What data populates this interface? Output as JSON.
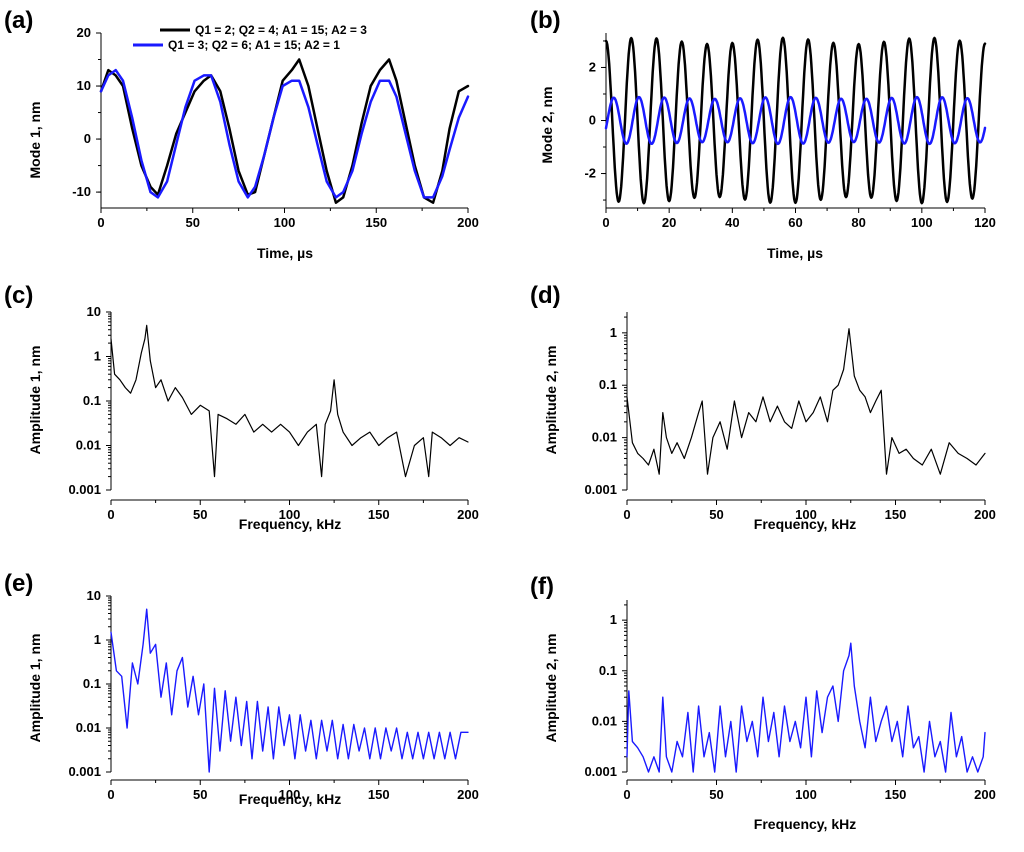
{
  "colors": {
    "black_series": "#000000",
    "blue_series": "#1a1aff"
  },
  "chart_data": [
    {
      "id": "a",
      "panel_label": "(a)",
      "type": "line",
      "xlabel": "Time, µs",
      "ylabel": "Mode 1, nm",
      "xlim": [
        0,
        200
      ],
      "ylim": [
        -13,
        20
      ],
      "yscale": "linear",
      "xticks": [
        "0",
        "50",
        "100",
        "150",
        "200"
      ],
      "yticks": [
        "-10",
        "0",
        "10",
        "20"
      ],
      "legend": {
        "placement": "top",
        "entries": [
          {
            "name": "black",
            "text": "Q1 = 2; Q2 = 4; A1 = 15; A2 = 3",
            "color": "#000000"
          },
          {
            "name": "blue",
            "text": "Q1 = 3; Q2 = 6; A1 = 15; A2 = 1",
            "color": "#1a1aff"
          }
        ]
      },
      "series": [
        {
          "name": "black",
          "color": "#000000",
          "width": 2.5,
          "x": [
            0,
            4,
            8,
            12,
            17,
            22,
            27,
            31,
            36,
            41,
            46,
            51,
            56,
            60,
            65,
            70,
            75,
            80,
            84,
            89,
            94,
            99,
            104,
            108,
            113,
            118,
            123,
            128,
            132,
            137,
            142,
            147,
            152,
            157,
            161,
            166,
            171,
            176,
            181,
            186,
            190,
            195,
            200
          ],
          "y": [
            9,
            13,
            12,
            10,
            2,
            -5,
            -9,
            -10.5,
            -5,
            1,
            5,
            9,
            11,
            12,
            9,
            2,
            -6,
            -10.5,
            -10,
            -3,
            4,
            11,
            13,
            15,
            10,
            2,
            -6,
            -12,
            -11,
            -5,
            3,
            10,
            13,
            15,
            11,
            3,
            -5,
            -11,
            -12,
            -6,
            2,
            9,
            10
          ]
        },
        {
          "name": "blue",
          "color": "#1a1aff",
          "width": 2.5,
          "x": [
            0,
            4,
            8,
            12,
            17,
            22,
            27,
            31,
            36,
            41,
            46,
            51,
            56,
            60,
            65,
            70,
            75,
            80,
            84,
            89,
            94,
            99,
            104,
            108,
            113,
            118,
            123,
            128,
            132,
            137,
            142,
            147,
            152,
            157,
            161,
            166,
            171,
            176,
            181,
            186,
            190,
            195,
            200
          ],
          "y": [
            9,
            12,
            13,
            11,
            4,
            -4,
            -10,
            -11,
            -8,
            -1,
            6,
            11,
            12,
            12,
            7,
            -1,
            -8,
            -11,
            -9,
            -3,
            4,
            10,
            11,
            11,
            6,
            -1,
            -8,
            -11,
            -10,
            -6,
            1,
            7,
            11,
            11,
            8,
            1,
            -6,
            -11,
            -11,
            -7,
            -2,
            4,
            8
          ]
        }
      ]
    },
    {
      "id": "b",
      "panel_label": "(b)",
      "type": "line",
      "xlabel": "Time, µs",
      "ylabel": "Mode 2, nm",
      "xlim": [
        0,
        120
      ],
      "ylim": [
        -3.3,
        3.3
      ],
      "yscale": "linear",
      "xticks": [
        "0",
        "20",
        "40",
        "60",
        "80",
        "100",
        "120"
      ],
      "yticks": [
        "-2",
        "0",
        "2"
      ],
      "series": [
        {
          "name": "black",
          "color": "#000000",
          "width": 2.5,
          "waveform": {
            "period": 8,
            "amplitude": 3,
            "phase_deg": 90,
            "offset": 0
          }
        },
        {
          "name": "blue",
          "color": "#1a1aff",
          "width": 2.5,
          "waveform": {
            "period": 8,
            "amplitude": 0.85,
            "phase_deg": -20,
            "offset": 0
          }
        }
      ]
    },
    {
      "id": "c",
      "panel_label": "(c)",
      "type": "line",
      "xlabel": "Frequency, kHz",
      "ylabel": "Amplitude 1, nm",
      "xlim": [
        0,
        200
      ],
      "ylim": [
        0.001,
        10
      ],
      "yscale": "log",
      "xticks": [
        "0",
        "50",
        "100",
        "150",
        "200"
      ],
      "yticks": [
        "0.001",
        "0.01",
        "0.1",
        "1",
        "10"
      ],
      "series": [
        {
          "name": "black",
          "color": "#000000",
          "width": 1.2,
          "x": [
            0,
            2,
            5,
            8,
            11,
            14,
            17,
            19,
            20,
            22,
            25,
            28,
            32,
            36,
            40,
            45,
            50,
            55,
            58,
            60,
            65,
            70,
            75,
            80,
            85,
            90,
            95,
            100,
            105,
            110,
            115,
            118,
            120,
            123,
            125,
            127,
            130,
            135,
            140,
            145,
            150,
            155,
            160,
            165,
            170,
            175,
            178,
            180,
            185,
            190,
            195,
            200
          ],
          "y": [
            2.5,
            0.4,
            0.3,
            0.2,
            0.15,
            0.3,
            1.2,
            2.5,
            5,
            0.8,
            0.2,
            0.3,
            0.1,
            0.2,
            0.12,
            0.05,
            0.08,
            0.06,
            0.002,
            0.05,
            0.04,
            0.03,
            0.05,
            0.02,
            0.03,
            0.02,
            0.03,
            0.02,
            0.01,
            0.02,
            0.03,
            0.002,
            0.03,
            0.06,
            0.3,
            0.05,
            0.02,
            0.01,
            0.015,
            0.02,
            0.01,
            0.015,
            0.02,
            0.002,
            0.01,
            0.015,
            0.002,
            0.02,
            0.015,
            0.01,
            0.015,
            0.012
          ]
        }
      ]
    },
    {
      "id": "d",
      "panel_label": "(d)",
      "type": "line",
      "xlabel": "Frequency, kHz",
      "ylabel": "Amplitude 2, nm",
      "xlim": [
        0,
        200
      ],
      "ylim": [
        0.001,
        2.5
      ],
      "yscale": "log",
      "xticks": [
        "0",
        "50",
        "100",
        "150",
        "200"
      ],
      "yticks": [
        "0.001",
        "0.01",
        "0.1",
        "1"
      ],
      "series": [
        {
          "name": "black",
          "color": "#000000",
          "width": 1.2,
          "x": [
            0,
            3,
            6,
            9,
            12,
            15,
            18,
            20,
            22,
            25,
            28,
            32,
            36,
            40,
            42,
            45,
            48,
            52,
            56,
            60,
            64,
            68,
            72,
            76,
            80,
            84,
            88,
            92,
            96,
            100,
            104,
            108,
            112,
            115,
            118,
            121,
            124,
            127,
            130,
            133,
            136,
            139,
            142,
            145,
            148,
            152,
            156,
            160,
            165,
            170,
            175,
            180,
            185,
            190,
            195,
            200
          ],
          "y": [
            0.06,
            0.008,
            0.005,
            0.004,
            0.003,
            0.006,
            0.002,
            0.03,
            0.01,
            0.005,
            0.008,
            0.004,
            0.01,
            0.03,
            0.05,
            0.002,
            0.01,
            0.02,
            0.006,
            0.05,
            0.01,
            0.03,
            0.02,
            0.06,
            0.02,
            0.04,
            0.02,
            0.015,
            0.05,
            0.02,
            0.03,
            0.06,
            0.02,
            0.08,
            0.1,
            0.2,
            1.2,
            0.15,
            0.08,
            0.06,
            0.03,
            0.05,
            0.08,
            0.002,
            0.01,
            0.005,
            0.006,
            0.004,
            0.003,
            0.006,
            0.002,
            0.008,
            0.005,
            0.004,
            0.003,
            0.005
          ]
        }
      ]
    },
    {
      "id": "e",
      "panel_label": "(e)",
      "type": "line",
      "xlabel": "Frequency, kHz",
      "ylabel": "Amplitude 1, nm",
      "xlim": [
        0,
        200
      ],
      "ylim": [
        0.001,
        10
      ],
      "yscale": "log",
      "xticks": [
        "0",
        "50",
        "100",
        "150",
        "200"
      ],
      "yticks": [
        "0.001",
        "0.01",
        "0.1",
        "1",
        "10"
      ],
      "series": [
        {
          "name": "blue",
          "color": "#1a1aff",
          "width": 1.4,
          "x": [
            0,
            3,
            6,
            9,
            12,
            15,
            18,
            20,
            22,
            25,
            28,
            31,
            34,
            37,
            40,
            43,
            46,
            49,
            52,
            55,
            58,
            61,
            64,
            67,
            70,
            73,
            76,
            79,
            82,
            85,
            88,
            91,
            94,
            97,
            100,
            103,
            106,
            109,
            112,
            115,
            118,
            121,
            124,
            127,
            130,
            133,
            136,
            139,
            142,
            145,
            148,
            151,
            154,
            157,
            160,
            163,
            166,
            169,
            172,
            175,
            178,
            181,
            184,
            187,
            190,
            193,
            196,
            200
          ],
          "y": [
            1.5,
            0.2,
            0.15,
            0.01,
            0.3,
            0.1,
            0.8,
            5,
            0.5,
            0.8,
            0.05,
            0.3,
            0.02,
            0.2,
            0.4,
            0.03,
            0.15,
            0.02,
            0.1,
            0.001,
            0.08,
            0.003,
            0.07,
            0.005,
            0.05,
            0.004,
            0.04,
            0.002,
            0.04,
            0.003,
            0.03,
            0.002,
            0.03,
            0.004,
            0.02,
            0.002,
            0.02,
            0.003,
            0.015,
            0.002,
            0.015,
            0.003,
            0.015,
            0.002,
            0.012,
            0.002,
            0.012,
            0.003,
            0.01,
            0.002,
            0.01,
            0.002,
            0.01,
            0.003,
            0.01,
            0.002,
            0.008,
            0.002,
            0.008,
            0.002,
            0.008,
            0.002,
            0.008,
            0.002,
            0.008,
            0.002,
            0.008,
            0.008
          ]
        }
      ]
    },
    {
      "id": "f",
      "panel_label": "(f)",
      "type": "line",
      "xlabel": "Frequency, kHz",
      "ylabel": "Amplitude 2, nm",
      "xlim": [
        0,
        200
      ],
      "ylim": [
        0.001,
        2.5
      ],
      "yscale": "log",
      "xticks": [
        "0",
        "50",
        "100",
        "150",
        "200"
      ],
      "yticks": [
        "0.001",
        "0.01",
        "0.1",
        "1"
      ],
      "series": [
        {
          "name": "blue",
          "color": "#1a1aff",
          "width": 1.4,
          "x": [
            0,
            1,
            3,
            6,
            9,
            12,
            15,
            18,
            20,
            22,
            25,
            28,
            31,
            34,
            37,
            40,
            43,
            46,
            49,
            52,
            55,
            58,
            61,
            64,
            67,
            70,
            73,
            76,
            79,
            82,
            85,
            88,
            91,
            94,
            97,
            100,
            103,
            106,
            109,
            112,
            115,
            118,
            121,
            124,
            125,
            127,
            130,
            133,
            136,
            139,
            142,
            145,
            148,
            151,
            154,
            157,
            160,
            163,
            166,
            169,
            172,
            175,
            178,
            181,
            184,
            187,
            190,
            193,
            196,
            199,
            200
          ],
          "y": [
            0.002,
            0.04,
            0.004,
            0.003,
            0.002,
            0.001,
            0.002,
            0.001,
            0.03,
            0.002,
            0.001,
            0.004,
            0.002,
            0.015,
            0.001,
            0.02,
            0.002,
            0.006,
            0.001,
            0.02,
            0.002,
            0.01,
            0.001,
            0.02,
            0.004,
            0.01,
            0.002,
            0.03,
            0.004,
            0.015,
            0.002,
            0.02,
            0.004,
            0.01,
            0.003,
            0.03,
            0.002,
            0.04,
            0.006,
            0.03,
            0.05,
            0.01,
            0.1,
            0.2,
            0.35,
            0.05,
            0.01,
            0.003,
            0.03,
            0.004,
            0.01,
            0.02,
            0.004,
            0.01,
            0.002,
            0.02,
            0.003,
            0.005,
            0.001,
            0.01,
            0.002,
            0.004,
            0.001,
            0.015,
            0.002,
            0.005,
            0.001,
            0.002,
            0.001,
            0.002,
            0.006
          ]
        }
      ]
    }
  ]
}
